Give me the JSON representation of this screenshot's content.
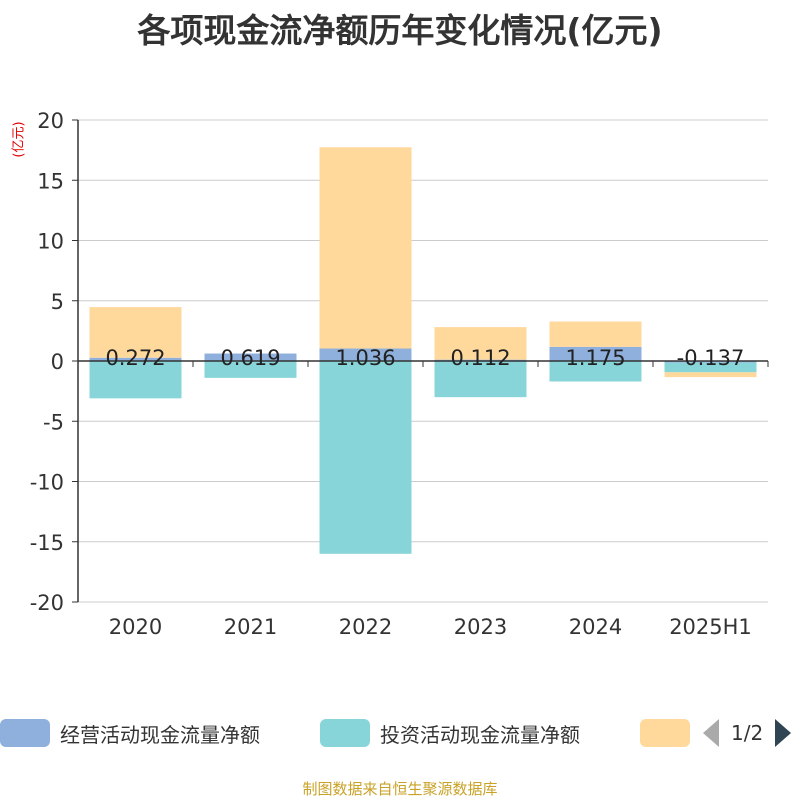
{
  "title": "各项现金流净额历年变化情况(亿元)",
  "unit_label": "(亿元)",
  "source": "制图数据来自恒生聚源数据库",
  "legend": {
    "items": [
      {
        "label": "经营活动现金流量净额",
        "color": "#8fb0dc"
      },
      {
        "label": "投资活动现金流量净额",
        "color": "#87d4d9"
      },
      {
        "label": "",
        "color": "#ffd89b"
      }
    ],
    "page_text": "1/2"
  },
  "chart_data": {
    "type": "bar",
    "stacked": true,
    "categories": [
      "2020",
      "2021",
      "2022",
      "2023",
      "2024",
      "2025H1"
    ],
    "ylim": [
      -20,
      20
    ],
    "yticks": [
      20,
      15,
      10,
      5,
      0,
      -5,
      -10,
      -15,
      -20
    ],
    "grid": true,
    "series": [
      {
        "name": "经营活动现金流量净额",
        "color": "#8fb0dc",
        "values": [
          0.272,
          0.619,
          1.036,
          0.112,
          1.175,
          -0.137
        ],
        "labels": [
          "0.272",
          "0.619",
          "1.036",
          "0.112",
          "1.175",
          "-0.137"
        ]
      },
      {
        "name": "投资活动现金流量净额",
        "color": "#87d4d9",
        "values": [
          -3.1,
          -1.4,
          -16.0,
          -3.0,
          -1.7,
          -0.8
        ]
      },
      {
        "color": "#ffd89b",
        "values": [
          4.2,
          0.0,
          16.7,
          2.7,
          2.1,
          -0.4
        ]
      }
    ]
  }
}
